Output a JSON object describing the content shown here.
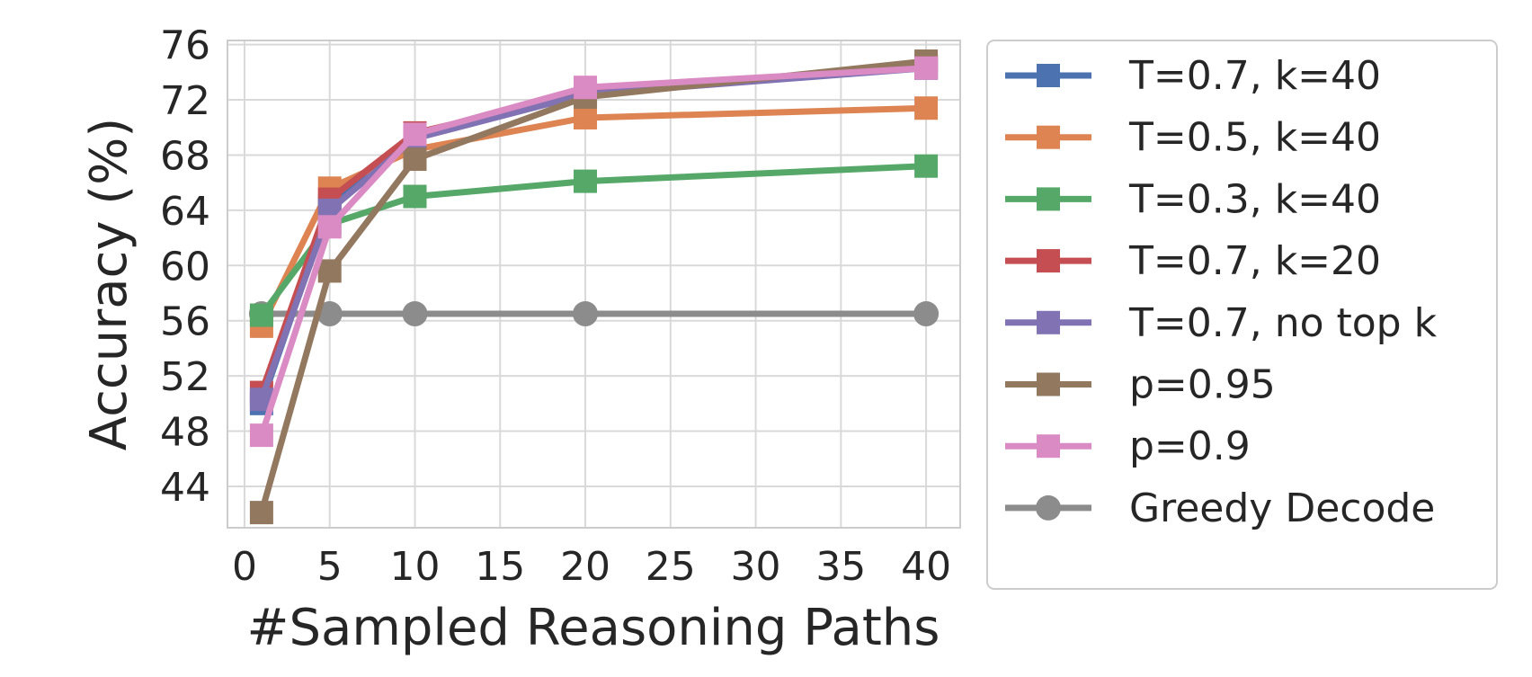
{
  "chart_data": {
    "type": "line",
    "title": "",
    "xlabel": "#Sampled Reasoning Paths",
    "ylabel": "Accuracy (%)",
    "xlim": [
      -1,
      42
    ],
    "ylim": [
      41,
      76.3
    ],
    "xticks": [
      0,
      5,
      10,
      15,
      20,
      25,
      30,
      35,
      40
    ],
    "yticks": [
      44,
      48,
      52,
      56,
      60,
      64,
      68,
      72,
      76
    ],
    "grid": true,
    "legend_position": "right-outside",
    "x": [
      1,
      5,
      10,
      20,
      40
    ],
    "series": [
      {
        "name": "T=0.7, k=40",
        "color": "#4c72b0",
        "marker": "square",
        "values": [
          50.0,
          64.3,
          69.3,
          72.6,
          74.3
        ]
      },
      {
        "name": "T=0.5, k=40",
        "color": "#dd8452",
        "marker": "square",
        "values": [
          55.6,
          65.6,
          68.4,
          70.7,
          71.4
        ]
      },
      {
        "name": "T=0.3, k=40",
        "color": "#55a868",
        "marker": "square",
        "values": [
          56.4,
          63.0,
          65.0,
          66.1,
          67.2
        ]
      },
      {
        "name": "T=0.7, k=20",
        "color": "#c44e52",
        "marker": "square",
        "values": [
          50.8,
          64.8,
          69.6,
          72.5,
          74.4
        ]
      },
      {
        "name": "T=0.7, no top k",
        "color": "#8172b3",
        "marker": "square",
        "values": [
          50.3,
          64.0,
          69.2,
          72.4,
          74.3
        ]
      },
      {
        "name": "p=0.95",
        "color": "#937860",
        "marker": "square",
        "values": [
          42.1,
          59.6,
          67.7,
          72.2,
          74.8
        ]
      },
      {
        "name": "p=0.9",
        "color": "#da8bc3",
        "marker": "square",
        "values": [
          47.7,
          62.8,
          69.5,
          72.9,
          74.3
        ]
      },
      {
        "name": "Greedy Decode",
        "color": "#8c8c8c",
        "marker": "circle",
        "values": [
          56.5,
          56.5,
          56.5,
          56.5,
          56.5
        ]
      }
    ]
  }
}
